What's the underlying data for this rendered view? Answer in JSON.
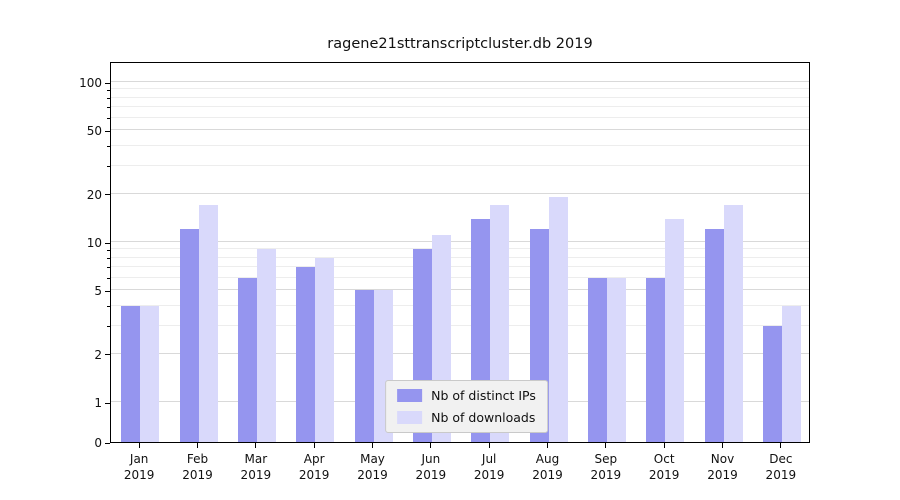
{
  "chart_data": {
    "type": "bar",
    "title": "ragene21sttranscriptcluster.db 2019",
    "categories": [
      "Jan",
      "Feb",
      "Mar",
      "Apr",
      "May",
      "Jun",
      "Jul",
      "Aug",
      "Sep",
      "Oct",
      "Nov",
      "Dec"
    ],
    "year_label": "2019",
    "series": [
      {
        "name": "Nb of distinct IPs",
        "color": "#9595ef",
        "values": [
          4,
          12,
          6,
          7,
          5,
          9,
          14,
          12,
          6,
          6,
          12,
          3
        ]
      },
      {
        "name": "Nb of downloads",
        "color": "#d9d9fb",
        "values": [
          4,
          17,
          9,
          8,
          5,
          11,
          17,
          19,
          6,
          14,
          17,
          4
        ]
      }
    ],
    "yscale": "symlog",
    "yticks": [
      0,
      1,
      2,
      5,
      10,
      20,
      50,
      100
    ],
    "minor_yticks": [
      3,
      4,
      6,
      7,
      8,
      9,
      30,
      40,
      60,
      70,
      80,
      90
    ],
    "ylim": [
      0,
      100
    ],
    "xlabel": "",
    "ylabel": "",
    "grid": "horizontal",
    "legend_position": "lower center"
  }
}
